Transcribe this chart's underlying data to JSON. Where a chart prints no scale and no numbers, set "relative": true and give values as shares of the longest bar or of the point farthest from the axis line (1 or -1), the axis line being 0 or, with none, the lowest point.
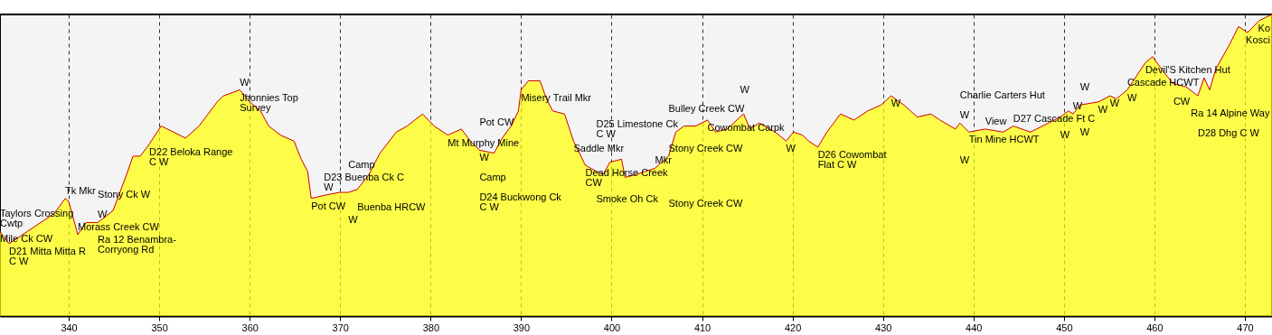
{
  "chart_data": {
    "type": "area",
    "relative": true,
    "xlim": [
      332.4,
      473.0
    ],
    "xticks": [
      340,
      350,
      360,
      370,
      380,
      390,
      400,
      410,
      420,
      430,
      440,
      450,
      460,
      470
    ],
    "grid": "x",
    "series": [
      {
        "color": "#ffff00",
        "x": [
          332.4,
          333.4,
          337.4,
          338.4,
          339.6,
          340.0,
          341.0,
          341.9,
          343.2,
          344.9,
          346.4,
          347.1,
          347.9,
          348.9,
          350.2,
          351.6,
          352.9,
          354.4,
          356.4,
          357.1,
          358.9,
          360.0,
          361.2,
          362.1,
          363.4,
          364.9,
          365.7,
          366.4,
          366.8,
          368.2,
          369.9,
          370.9,
          371.9,
          373.2,
          374.4,
          376.2,
          377.4,
          379.1,
          380.4,
          381.9,
          383.4,
          384.4,
          385.4,
          387.0,
          387.9,
          388.9,
          389.7,
          390.0,
          390.8,
          392.1,
          392.8,
          393.5,
          394.8,
          395.8,
          397.1,
          398.3,
          399.1,
          399.8,
          401.1,
          401.5,
          402.8,
          404.8,
          406.3,
          407.1,
          408.0,
          409.3,
          410.6,
          411.5,
          412.8,
          414.2,
          414.6,
          415.3,
          416.3,
          418.1,
          419.3,
          420.1,
          421.1,
          421.8,
          422.8,
          423.8,
          425.3,
          426.8,
          428.3,
          429.8,
          430.9,
          432.3,
          433.8,
          435.3,
          436.3,
          438.0,
          438.5,
          439.5,
          441.3,
          443.3,
          444.4,
          446.3,
          448.3,
          449.6,
          450.5,
          451.0,
          451.8,
          453.8,
          455.1,
          455.8,
          457.0,
          459.0,
          459.8,
          461.0,
          462.1,
          463.5,
          464.8,
          465.5,
          466.1,
          466.8,
          468.3,
          469.3,
          470.3,
          471.6,
          473.0
        ],
        "values": [
          0.28,
          0.24,
          0.32,
          0.34,
          0.39,
          0.38,
          0.27,
          0.31,
          0.31,
          0.35,
          0.47,
          0.53,
          0.53,
          0.57,
          0.63,
          0.61,
          0.59,
          0.63,
          0.71,
          0.73,
          0.75,
          0.71,
          0.68,
          0.63,
          0.6,
          0.58,
          0.52,
          0.48,
          0.39,
          0.4,
          0.41,
          0.41,
          0.42,
          0.47,
          0.54,
          0.61,
          0.63,
          0.67,
          0.63,
          0.6,
          0.62,
          0.58,
          0.55,
          0.54,
          0.59,
          0.63,
          0.68,
          0.75,
          0.78,
          0.78,
          0.72,
          0.68,
          0.67,
          0.58,
          0.5,
          0.48,
          0.47,
          0.51,
          0.52,
          0.46,
          0.47,
          0.49,
          0.53,
          0.61,
          0.63,
          0.63,
          0.65,
          0.61,
          0.62,
          0.66,
          0.67,
          0.62,
          0.64,
          0.61,
          0.58,
          0.61,
          0.6,
          0.58,
          0.56,
          0.61,
          0.67,
          0.65,
          0.68,
          0.7,
          0.73,
          0.7,
          0.66,
          0.67,
          0.65,
          0.62,
          0.64,
          0.61,
          0.62,
          0.61,
          0.63,
          0.61,
          0.64,
          0.66,
          0.68,
          0.67,
          0.7,
          0.71,
          0.73,
          0.72,
          0.75,
          0.84,
          0.86,
          0.81,
          0.77,
          0.76,
          0.73,
          0.79,
          0.75,
          0.82,
          0.9,
          0.96,
          0.94,
          0.98,
          1.0
        ]
      }
    ],
    "annotations": [
      {
        "text": "Mile Ck CW",
        "x": 332.4,
        "y": 0.28
      },
      "Taylors Crossing\nCwtp",
      {
        "text": "D21 Mitta Mitta R\nC W",
        "x": 333.4,
        "y": 0.24
      },
      {
        "text": "Tk Mkr",
        "x": 339.6,
        "y": 0.39
      },
      {
        "text": "Morass Creek CW",
        "x": 341.0,
        "y": 0.27
      },
      {
        "text": "W",
        "x": 343.2,
        "y": 0.31
      },
      "Ra 12 Benambra-\nCorryong Rd",
      "Stony Ck W",
      {
        "text": "D22 Beloka Range\nC W",
        "x": 348.9,
        "y": 0.57
      },
      {
        "text": "Jhonnies Top\nSurvey",
        "x": 358.9,
        "y": 0.75
      },
      "W",
      {
        "text": "Pot CW",
        "x": 366.8,
        "y": 0.39
      },
      {
        "text": "D23 Buenba Ck C\nW",
        "x": 368.2,
        "y": 0.4
      },
      {
        "text": "Buenba HRCW",
        "x": 371.9,
        "y": 0.42
      },
      {
        "text": "W",
        "x": 370.9,
        "y": 0.41
      },
      "Camp",
      {
        "text": "Mt Murphy Mine",
        "x": 381.9,
        "y": 0.6
      },
      {
        "text": "Misery Trail Mkr",
        "x": 390.0,
        "y": 0.75
      },
      {
        "text": "W",
        "x": 385.4,
        "y": 0.55
      },
      "Camp",
      "Pot CW",
      "D24 Buckwong Ck\nC W",
      {
        "text": "Saddle Mkr",
        "x": 395.8,
        "y": 0.58
      },
      {
        "text": "Dead Horse Creek\nCW",
        "x": 397.1,
        "y": 0.5
      },
      {
        "text": "Smoke Oh Ck",
        "x": 398.3,
        "y": 0.48
      },
      "D25 Limestone Ck\nC W",
      {
        "text": "Mkr",
        "x": 404.8,
        "y": 0.49
      },
      {
        "text": "Stony Creek CW",
        "x": 406.3,
        "y": 0.53
      },
      "Stony Creek CW",
      "Bulley Creek CW",
      {
        "text": "Cowombat Carpk",
        "x": 410.6,
        "y": 0.65
      },
      {
        "text": "W",
        "x": 414.2,
        "y": 0.66
      },
      {
        "text": "W",
        "x": 419.3,
        "y": 0.58
      },
      {
        "text": "D26 Cowombat\nFlat C W",
        "x": 422.8,
        "y": 0.56
      },
      {
        "text": "W",
        "x": 430.9,
        "y": 0.73
      },
      {
        "text": "Tin Mine HCWT",
        "x": 439.5,
        "y": 0.61
      },
      {
        "text": "D27 Cascade Ft C",
        "x": 444.4,
        "y": 0.63
      },
      {
        "text": "W",
        "x": 438.5,
        "y": 0.64
      },
      "Charlie Carters Hut",
      "W",
      {
        "text": "View",
        "x": 441.3,
        "y": 0.62
      },
      {
        "text": "W",
        "x": 451.0,
        "y": 0.67
      },
      {
        "text": "W",
        "x": 449.6,
        "y": 0.66
      },
      {
        "text": "W",
        "x": 451.8,
        "y": 0.7
      },
      "W",
      {
        "text": "W",
        "x": 453.8,
        "y": 0.71
      },
      {
        "text": "W",
        "x": 455.1,
        "y": 0.73
      },
      {
        "text": "W",
        "x": 457.0,
        "y": 0.75
      },
      "Cascade HCWT",
      {
        "text": "Devil'S Kitchen Hut",
        "x": 459.0,
        "y": 0.84
      },
      {
        "text": "CW",
        "x": 462.1,
        "y": 0.77
      },
      {
        "text": "Ra 14 Alpine Way",
        "x": 464.8,
        "y": 0.73
      },
      "D28 Dhg C W",
      {
        "text": "Kosci",
        "x": 470.3,
        "y": 0.94
      },
      {
        "text": "Ko",
        "x": 471.6,
        "y": 0.98
      }
    ]
  }
}
